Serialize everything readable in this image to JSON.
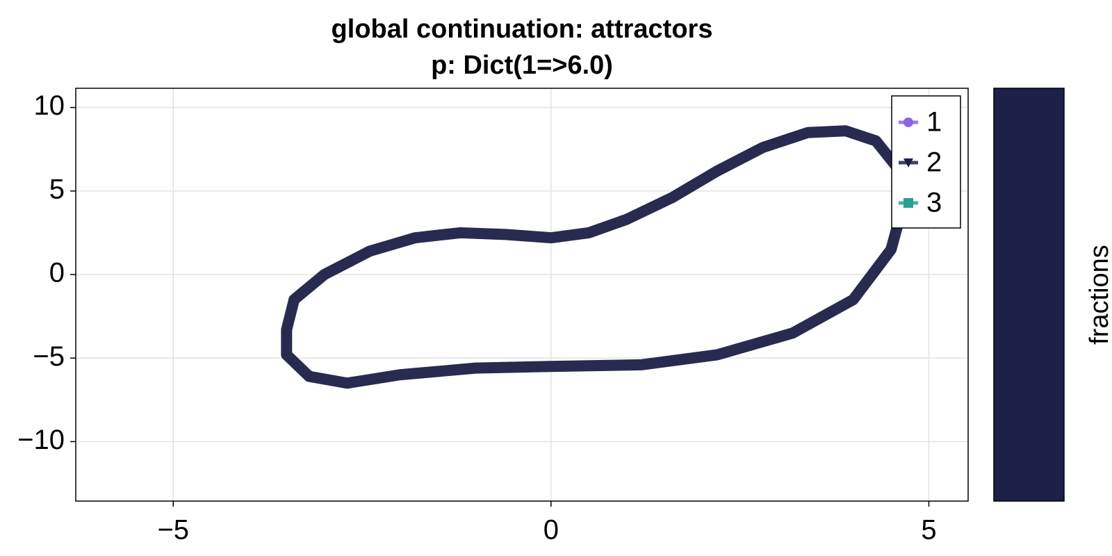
{
  "chart_data": {
    "type": "line",
    "title": "global continuation: attractors",
    "subtitle": "p: Dict(1=>6.0)",
    "xlim": [
      -6.29,
      5.52
    ],
    "ylim": [
      -13.56,
      11.15
    ],
    "xticks": [
      {
        "value": -5,
        "label": "−5"
      },
      0,
      5
    ],
    "yticks": [
      {
        "value": -10,
        "label": "−10"
      },
      {
        "value": -5,
        "label": "−5"
      },
      0,
      5,
      10
    ],
    "grid": true,
    "legend": "top-right",
    "series": [
      {
        "name": "1",
        "color": "#8c63e8",
        "marker": "circle"
      },
      {
        "name": "2",
        "color": "#1c2046",
        "marker": "triangle-down",
        "x": [
          -3.5,
          -3.4,
          -3.0,
          -2.4,
          -1.8,
          -1.2,
          -0.6,
          0,
          0.5,
          1.0,
          1.6,
          2.2,
          2.8,
          3.4,
          3.9,
          4.3,
          4.6,
          4.65,
          4.5,
          4.0,
          3.2,
          2.2,
          1.2,
          0,
          -1.0,
          -2.0,
          -2.7,
          -3.2,
          -3.5,
          -3.5
        ],
        "y": [
          -3.3,
          -1.5,
          0,
          1.4,
          2.2,
          2.5,
          2.4,
          2.2,
          2.5,
          3.3,
          4.6,
          6.2,
          7.6,
          8.5,
          8.6,
          8.0,
          6.3,
          4.0,
          1.5,
          -1.5,
          -3.5,
          -4.8,
          -5.4,
          -5.5,
          -5.6,
          -6.0,
          -6.5,
          -6.1,
          -4.8,
          -3.3
        ]
      },
      {
        "name": "3",
        "color": "#2aa08e",
        "marker": "square"
      }
    ],
    "colorbar": {
      "label": "fractions",
      "color": "#1c2046"
    }
  }
}
